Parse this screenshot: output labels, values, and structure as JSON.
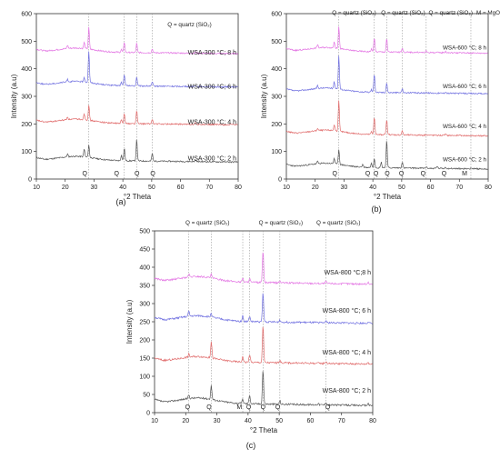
{
  "chart_data": [
    {
      "type": "line",
      "panel_label": "(a)",
      "xlabel": "°2 Theta",
      "ylabel": "Intensity (a.u)",
      "xlim": [
        10,
        80
      ],
      "ylim": [
        0,
        600
      ],
      "x_ticks": [
        10,
        20,
        30,
        40,
        50,
        60,
        70,
        80
      ],
      "y_ticks": [
        0,
        100,
        200,
        300,
        400,
        500,
        600
      ],
      "legend_note": "Q = quartz (SiO₂)",
      "ref_lines_x": [
        28.2,
        40.5,
        44.8,
        50.2
      ],
      "peak_markers": [
        {
          "label": "Q",
          "x": 26.8
        },
        {
          "label": "Q",
          "x": 37.8
        },
        {
          "label": "Q",
          "x": 44.9
        },
        {
          "label": "Q",
          "x": 50.4
        }
      ],
      "series": [
        {
          "name": "WSA-300 °C; 2 h",
          "color": "#555555",
          "baseline": 70,
          "peaks": [
            [
              20.8,
              10
            ],
            [
              26.6,
              28
            ],
            [
              28.2,
              45
            ],
            [
              39.5,
              20
            ],
            [
              40.5,
              45
            ],
            [
              44.8,
              78
            ],
            [
              50.2,
              28
            ],
            [
              65.2,
              6
            ]
          ]
        },
        {
          "name": "WSA-300 °C; 4 h",
          "color": "#e06a6a",
          "baseline": 205,
          "peaks": [
            [
              20.8,
              10
            ],
            [
              26.6,
              22
            ],
            [
              28.2,
              55
            ],
            [
              39.5,
              12
            ],
            [
              40.5,
              38
            ],
            [
              44.8,
              48
            ],
            [
              50.2,
              18
            ],
            [
              65.2,
              6
            ]
          ]
        },
        {
          "name": "WSA-300 °C; 6 h",
          "color": "#6f6fe0",
          "baseline": 342,
          "peaks": [
            [
              20.8,
              10
            ],
            [
              26.6,
              14
            ],
            [
              28.2,
              115
            ],
            [
              39.5,
              12
            ],
            [
              40.5,
              42
            ],
            [
              44.8,
              33
            ],
            [
              50.2,
              14
            ],
            [
              65.2,
              5
            ]
          ]
        },
        {
          "name": "WSA-300 °C; 8 h",
          "color": "#e374e3",
          "baseline": 463,
          "peaks": [
            [
              20.8,
              12
            ],
            [
              26.6,
              22
            ],
            [
              28.2,
              78
            ],
            [
              39.5,
              10
            ],
            [
              40.5,
              38
            ],
            [
              44.8,
              33
            ],
            [
              50.2,
              14
            ],
            [
              65.2,
              5
            ]
          ]
        }
      ],
      "series_labels_y": [
        68,
        200,
        328,
        452
      ]
    },
    {
      "type": "line",
      "panel_label": "(b)",
      "xlabel": "°2 Theta",
      "ylabel": "Intensity (a.u)",
      "xlim": [
        10,
        80
      ],
      "ylim": [
        0,
        600
      ],
      "x_ticks": [
        10,
        20,
        30,
        40,
        50,
        60,
        70,
        80
      ],
      "y_ticks": [
        0,
        100,
        200,
        300,
        400,
        500,
        600
      ],
      "legend_notes": [
        "Q = quartz (SiO₂)",
        "Q = quartz (SiO₂)",
        "Q = quartz (SiO₂)",
        "M = MgO"
      ],
      "ref_lines_x": [
        28.2,
        40.5,
        44.8,
        50.2,
        58.5,
        74.0
      ],
      "peak_markers": [
        {
          "label": "Q",
          "x": 26.8
        },
        {
          "label": "Q",
          "x": 38.2
        },
        {
          "label": "Q",
          "x": 41.1
        },
        {
          "label": "Q",
          "x": 45.0
        },
        {
          "label": "Q",
          "x": 49.9
        },
        {
          "label": "Q",
          "x": 57.4
        },
        {
          "label": "Q",
          "x": 64.7
        },
        {
          "label": "M",
          "x": 71.8
        }
      ],
      "series": [
        {
          "name": "WSA-600 °C; 2 h",
          "color": "#555555",
          "baseline": 45,
          "peaks": [
            [
              20.8,
              8
            ],
            [
              26.6,
              20
            ],
            [
              28.2,
              55
            ],
            [
              36.5,
              10
            ],
            [
              39.5,
              15
            ],
            [
              40.5,
              35
            ],
            [
              42.9,
              20
            ],
            [
              44.8,
              100
            ],
            [
              50.2,
              22
            ],
            [
              58.5,
              5
            ],
            [
              62.3,
              8
            ],
            [
              65.2,
              5
            ],
            [
              74.0,
              4
            ]
          ]
        },
        {
          "name": "WSA-600 °C; 4 h",
          "color": "#e06a6a",
          "baseline": 165,
          "peaks": [
            [
              20.8,
              8
            ],
            [
              26.6,
              22
            ],
            [
              28.2,
              110
            ],
            [
              39.5,
              10
            ],
            [
              40.5,
              65
            ],
            [
              44.8,
              55
            ],
            [
              50.2,
              15
            ],
            [
              58.5,
              4
            ],
            [
              65.2,
              5
            ]
          ]
        },
        {
          "name": "WSA-600 °C; 6 h",
          "color": "#6f6fe0",
          "baseline": 318,
          "peaks": [
            [
              20.8,
              10
            ],
            [
              26.6,
              24
            ],
            [
              28.2,
              120
            ],
            [
              39.5,
              10
            ],
            [
              40.5,
              68
            ],
            [
              44.8,
              35
            ],
            [
              50.2,
              14
            ],
            [
              58.5,
              4
            ],
            [
              65.2,
              5
            ]
          ]
        },
        {
          "name": "WSA-600 °C; 8 h",
          "color": "#e374e3",
          "baseline": 465,
          "peaks": [
            [
              20.8,
              12
            ],
            [
              26.6,
              22
            ],
            [
              28.2,
              80
            ],
            [
              39.5,
              10
            ],
            [
              40.5,
              52
            ],
            [
              44.8,
              48
            ],
            [
              50.2,
              16
            ],
            [
              58.5,
              5
            ],
            [
              65.2,
              5
            ]
          ]
        }
      ],
      "series_labels_y": [
        65,
        185,
        330,
        470
      ]
    },
    {
      "type": "line",
      "panel_label": "(c)",
      "xlabel": "°2 Theta",
      "ylabel": "Intensity (a.u)",
      "xlim": [
        10,
        80
      ],
      "ylim": [
        0,
        500
      ],
      "x_ticks": [
        10,
        20,
        30,
        40,
        50,
        60,
        70,
        80
      ],
      "y_ticks": [
        0,
        50,
        100,
        150,
        200,
        250,
        300,
        350,
        400,
        450,
        500
      ],
      "legend_notes": [
        "Q = quartz (SiO₂)",
        "Q = quartz (SiO₂)",
        "Q = quartz (SiO₂)"
      ],
      "ref_lines_x": [
        21.0,
        28.2,
        38.3,
        40.5,
        44.8,
        50.2,
        65.0
      ],
      "peak_markers": [
        {
          "label": "Q",
          "x": 20.6
        },
        {
          "label": "Q",
          "x": 27.5
        },
        {
          "label": "M",
          "x": 37.2
        },
        {
          "label": "Q",
          "x": 40.2
        },
        {
          "label": "Q",
          "x": 44.8
        },
        {
          "label": "Q",
          "x": 49.5
        },
        {
          "label": "Q",
          "x": 65.6
        }
      ],
      "series": [
        {
          "name": "WSA-800 °C; 2 h",
          "color": "#555555",
          "baseline": 28,
          "peaks": [
            [
              21.0,
              10
            ],
            [
              28.2,
              38
            ],
            [
              38.3,
              12
            ],
            [
              40.5,
              25
            ],
            [
              44.8,
              95
            ],
            [
              50.2,
              10
            ],
            [
              62.5,
              4
            ],
            [
              65.0,
              8
            ],
            [
              78.5,
              6
            ]
          ]
        },
        {
          "name": "WSA-800 °C; 4 h",
          "color": "#e06a6a",
          "baseline": 142,
          "peaks": [
            [
              21.0,
              8
            ],
            [
              28.2,
              45
            ],
            [
              38.3,
              15
            ],
            [
              40.5,
              22
            ],
            [
              44.8,
              102
            ],
            [
              50.2,
              8
            ],
            [
              65.0,
              6
            ],
            [
              78.5,
              5
            ]
          ]
        },
        {
          "name": "WSA-800 °C; 6 h",
          "color": "#6f6fe0",
          "baseline": 254,
          "peaks": [
            [
              21.0,
              14
            ],
            [
              28.2,
              12
            ],
            [
              38.3,
              15
            ],
            [
              40.5,
              15
            ],
            [
              44.8,
              80
            ],
            [
              50.2,
              6
            ],
            [
              65.0,
              6
            ],
            [
              78.5,
              4
            ]
          ]
        },
        {
          "name": "WSA-800 °C;8 h",
          "color": "#e374e3",
          "baseline": 362,
          "peaks": [
            [
              21.0,
              8
            ],
            [
              28.2,
              10
            ],
            [
              38.3,
              12
            ],
            [
              40.5,
              12
            ],
            [
              44.8,
              88
            ],
            [
              50.2,
              5
            ],
            [
              65.0,
              5
            ],
            [
              78.5,
              4
            ]
          ]
        }
      ],
      "series_labels_y": [
        55,
        160,
        275,
        380
      ]
    }
  ]
}
